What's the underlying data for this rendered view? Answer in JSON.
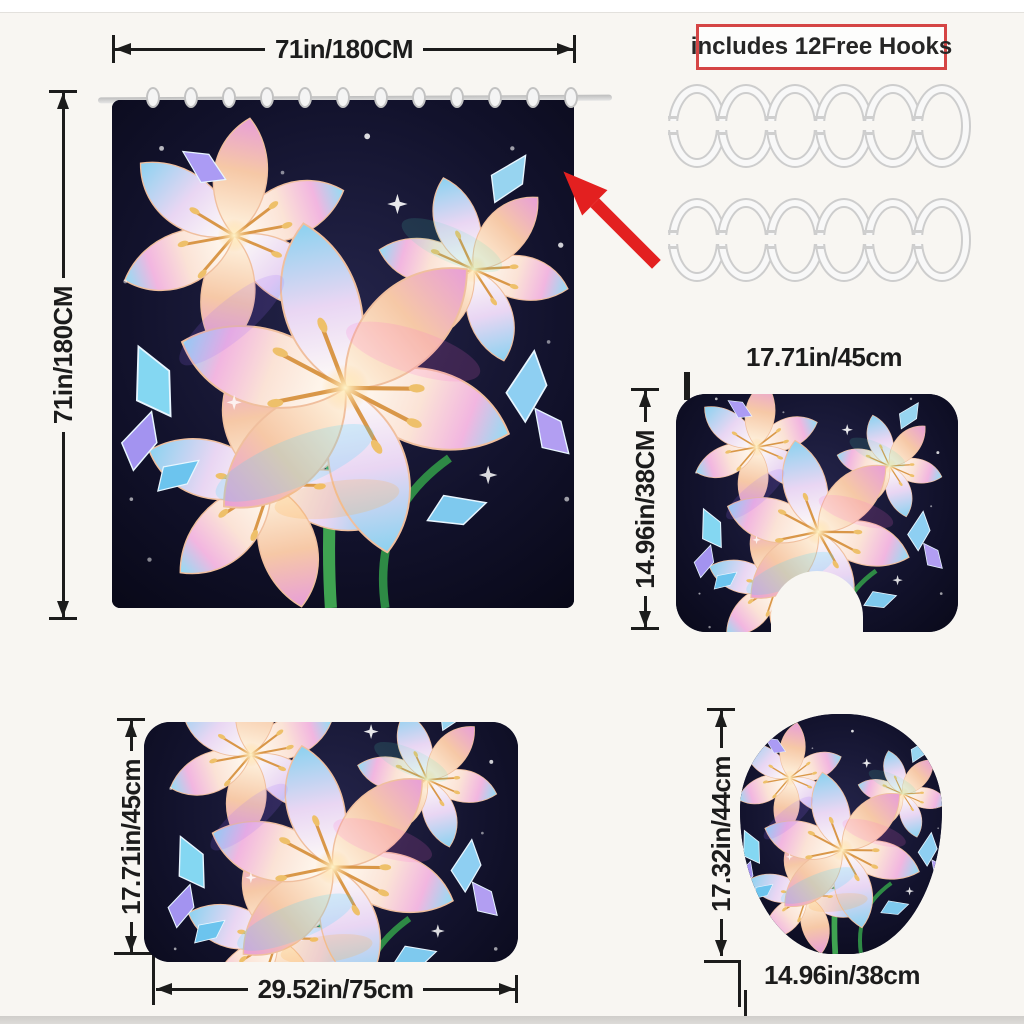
{
  "page": {
    "background": "#f8f6f2",
    "bottom_strip_color": "#d7d5d2",
    "dimension_color": "#1c1c1c"
  },
  "curtain": {
    "width_label": "71in/180CM",
    "height_label": "71in/180CM"
  },
  "hooks": {
    "badge_label": "includes 12Free Hooks",
    "badge_border_color": "#d54545",
    "count": 12,
    "rows": 2,
    "per_row": 6
  },
  "contour_mat": {
    "width_label": "17.71in/45cm",
    "height_label": "14.96in/38CM"
  },
  "bath_mat": {
    "width_label": "29.52in/75cm",
    "height_label": "17.71in/45cm"
  },
  "lid_cover": {
    "width_label": "14.96in/38cm",
    "height_label": "17.32in/44cm"
  },
  "annotation": {
    "red_arrow_color": "#e32020"
  }
}
